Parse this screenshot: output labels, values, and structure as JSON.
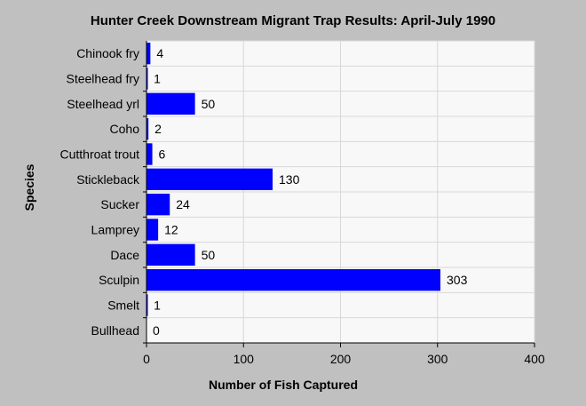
{
  "chart_data": {
    "type": "bar",
    "orientation": "horizontal",
    "title": "Hunter Creek Downstream Migrant Trap Results: April-July 1990",
    "xlabel": "Number of Fish Captured",
    "ylabel": "Species",
    "xlim": [
      0,
      400
    ],
    "xticks": [
      0,
      100,
      200,
      300,
      400
    ],
    "grid": true,
    "legend": "none",
    "categories": [
      "Chinook fry",
      "Steelhead fry",
      "Steelhead yrl",
      "Coho",
      "Cutthroat trout",
      "Stickleback",
      "Sucker",
      "Lamprey",
      "Dace",
      "Sculpin",
      "Smelt",
      "Bullhead"
    ],
    "values": [
      4,
      1,
      50,
      2,
      6,
      130,
      24,
      12,
      50,
      303,
      1,
      0
    ],
    "data_labels": [
      "4",
      "1",
      "50",
      "2",
      "6",
      "130",
      "24",
      "12",
      "50",
      "303",
      "1",
      "0"
    ],
    "colors": {
      "bar": "#0000ff",
      "background": "#c0c0c0",
      "plot_area": "#f8f8f8",
      "grid": "#d8d8d8"
    }
  }
}
